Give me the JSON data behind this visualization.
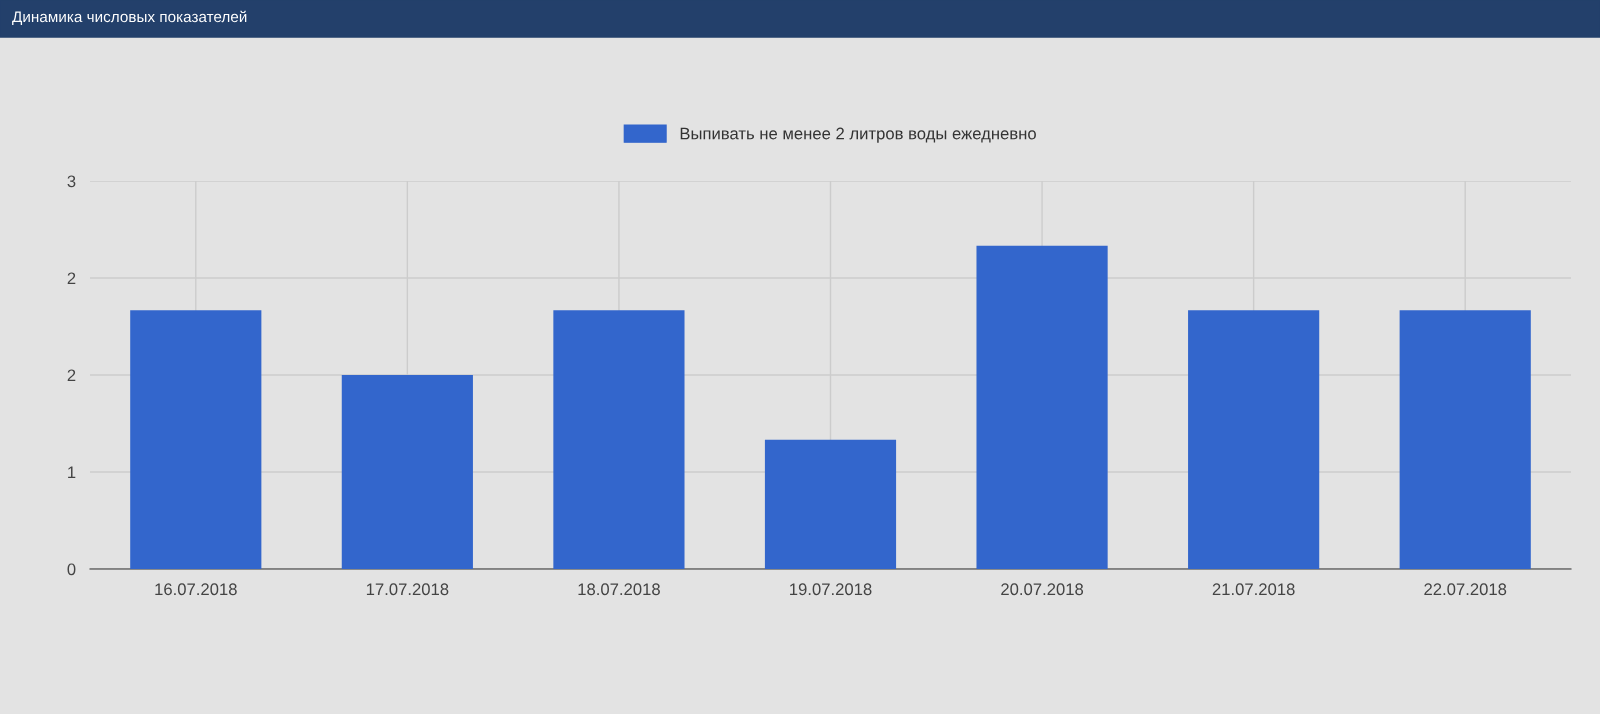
{
  "chart_data": {
    "type": "bar",
    "title": "Динамика числовых показателей",
    "categories": [
      "16.07.2018",
      "17.07.2018",
      "18.07.2018",
      "19.07.2018",
      "20.07.2018",
      "21.07.2018",
      "22.07.2018"
    ],
    "series": [
      {
        "name": "Выпивать не менее 2 литров воды ежедневно",
        "color": "#3366cc",
        "values": [
          2,
          1.5,
          2,
          1,
          2.5,
          2,
          2
        ]
      }
    ],
    "ylim": [
      0,
      3
    ],
    "yticks": [
      0,
      {
        "value": 0.75,
        "label": "1"
      },
      {
        "value": 1.5,
        "label": "2"
      },
      {
        "value": 2.25,
        "label": "2"
      },
      3
    ],
    "grid": true,
    "legend": "top"
  }
}
